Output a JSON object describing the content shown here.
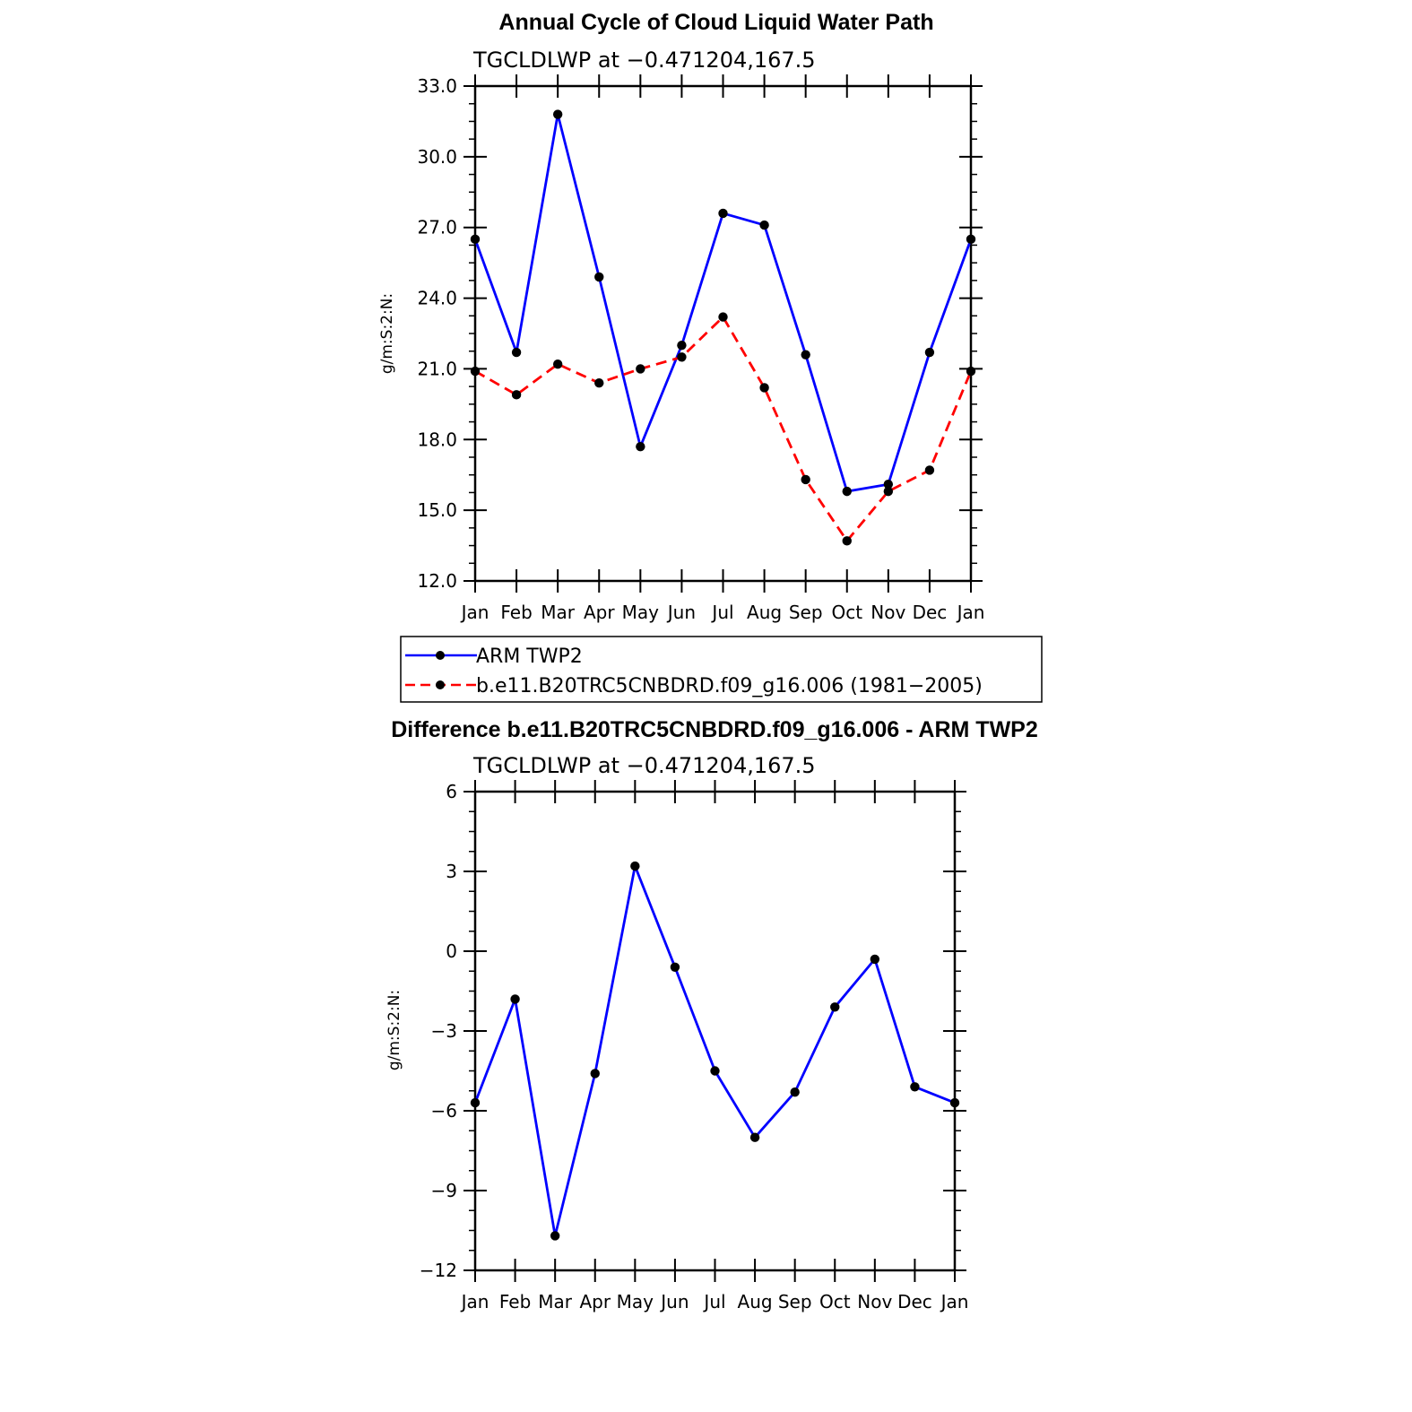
{
  "chart_data": [
    {
      "type": "line",
      "title": "Annual Cycle of Cloud Liquid Water Path",
      "subtitle": "TGCLDLWP at −0.471204,167.5",
      "xlabel": "",
      "ylabel": "g/m:S:2:N:",
      "categories": [
        "Jan",
        "Feb",
        "Mar",
        "Apr",
        "May",
        "Jun",
        "Jul",
        "Aug",
        "Sep",
        "Oct",
        "Nov",
        "Dec",
        "Jan"
      ],
      "ylim": [
        12,
        33
      ],
      "yticks": [
        "12.0",
        "15.0",
        "18.0",
        "21.0",
        "24.0",
        "27.0",
        "30.0",
        "33.0"
      ],
      "series": [
        {
          "name": "ARM TWP2",
          "color": "#0000ff",
          "dash": "solid",
          "values": [
            26.5,
            21.7,
            31.8,
            24.9,
            17.7,
            22.0,
            27.6,
            27.1,
            21.6,
            15.8,
            16.1,
            21.7,
            26.5
          ]
        },
        {
          "name": "b.e11.B20TRC5CNBDRD.f09_g16.006 (1981−2005)",
          "color": "#ff0000",
          "dash": "dashed",
          "values": [
            20.9,
            19.9,
            21.2,
            20.4,
            21.0,
            21.5,
            23.2,
            20.2,
            16.3,
            13.7,
            15.8,
            16.7,
            20.9
          ]
        }
      ],
      "legend": [
        "ARM TWP2",
        "b.e11.B20TRC5CNBDRD.f09_g16.006 (1981−2005)"
      ]
    },
    {
      "type": "line",
      "title": "Difference b.e11.B20TRC5CNBDRD.f09_g16.006 - ARM TWP2",
      "subtitle": "TGCLDLWP at −0.471204,167.5",
      "xlabel": "",
      "ylabel": "g/m:S:2:N:",
      "categories": [
        "Jan",
        "Feb",
        "Mar",
        "Apr",
        "May",
        "Jun",
        "Jul",
        "Aug",
        "Sep",
        "Oct",
        "Nov",
        "Dec",
        "Jan"
      ],
      "ylim": [
        -12,
        6
      ],
      "yticks": [
        "−12",
        "−9",
        "−6",
        "−3",
        "0",
        "3",
        "6"
      ],
      "series": [
        {
          "name": "Difference",
          "color": "#0000ff",
          "dash": "solid",
          "values": [
            -5.7,
            -1.8,
            -10.7,
            -4.6,
            3.2,
            -0.6,
            -4.5,
            -7.0,
            -5.3,
            -2.1,
            -0.3,
            -5.1,
            -5.7
          ]
        }
      ]
    }
  ]
}
